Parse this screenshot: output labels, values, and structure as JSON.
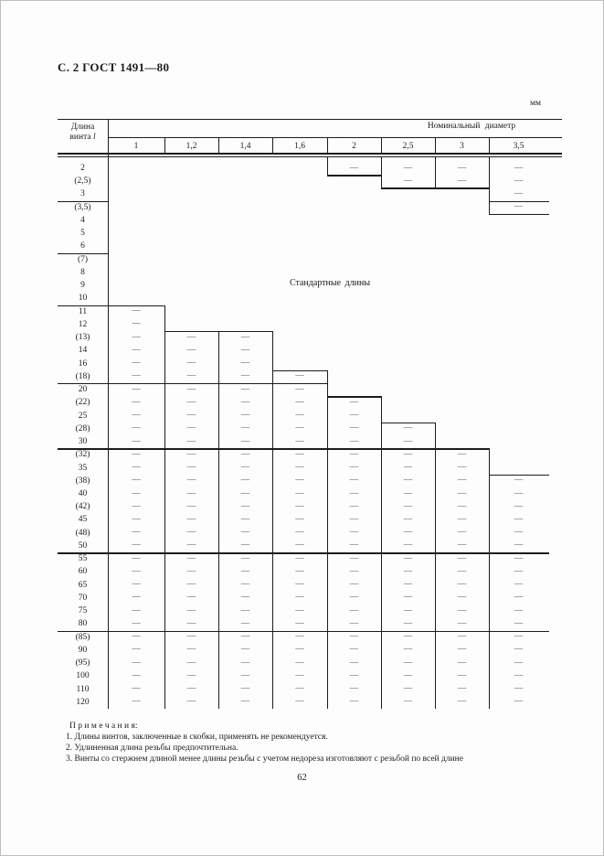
{
  "page": {
    "header": "С. 2 ГОСТ 1491—80",
    "unit_label": "мм",
    "page_number": "62"
  },
  "table": {
    "length_header_line1": "Длина",
    "length_header_line2": "винта",
    "length_header_symbol": "l",
    "diameter_header": "Номинальный диаметр",
    "columns": [
      "1",
      "1,2",
      "1,4",
      "1,6",
      "2",
      "2,5",
      "3",
      "3,5"
    ],
    "center_note": "Стандартные длины",
    "dash_symbol": "—",
    "rows": [
      {
        "len": "2",
        "d": [
          0,
          0,
          0,
          0,
          1,
          1,
          1,
          1
        ]
      },
      {
        "len": "(2,5)",
        "d": [
          0,
          0,
          0,
          0,
          0,
          1,
          1,
          1
        ]
      },
      {
        "len": "3",
        "d": [
          0,
          0,
          0,
          0,
          0,
          0,
          0,
          1
        ]
      },
      {
        "len": "(3,5)",
        "d": [
          0,
          0,
          0,
          0,
          0,
          0,
          0,
          1
        ]
      },
      {
        "len": "4",
        "d": [
          0,
          0,
          0,
          0,
          0,
          0,
          0,
          0
        ]
      },
      {
        "len": "5",
        "d": [
          0,
          0,
          0,
          0,
          0,
          0,
          0,
          0
        ]
      },
      {
        "len": "6",
        "d": [
          0,
          0,
          0,
          0,
          0,
          0,
          0,
          0
        ]
      },
      {
        "len": "(7)",
        "d": [
          0,
          0,
          0,
          0,
          0,
          0,
          0,
          0
        ]
      },
      {
        "len": "8",
        "d": [
          0,
          0,
          0,
          0,
          0,
          0,
          0,
          0
        ]
      },
      {
        "len": "9",
        "d": [
          0,
          0,
          0,
          0,
          0,
          0,
          0,
          0
        ]
      },
      {
        "len": "10",
        "d": [
          0,
          0,
          0,
          0,
          0,
          0,
          0,
          0
        ]
      },
      {
        "len": "11",
        "d": [
          1,
          0,
          0,
          0,
          0,
          0,
          0,
          0
        ]
      },
      {
        "len": "12",
        "d": [
          1,
          0,
          0,
          0,
          0,
          0,
          0,
          0
        ]
      },
      {
        "len": "(13)",
        "d": [
          1,
          1,
          1,
          0,
          0,
          0,
          0,
          0
        ]
      },
      {
        "len": "14",
        "d": [
          1,
          1,
          1,
          0,
          0,
          0,
          0,
          0
        ]
      },
      {
        "len": "16",
        "d": [
          1,
          1,
          1,
          0,
          0,
          0,
          0,
          0
        ]
      },
      {
        "len": "(18)",
        "d": [
          1,
          1,
          1,
          1,
          0,
          0,
          0,
          0
        ]
      },
      {
        "len": "20",
        "d": [
          1,
          1,
          1,
          1,
          0,
          0,
          0,
          0
        ]
      },
      {
        "len": "(22)",
        "d": [
          1,
          1,
          1,
          1,
          1,
          0,
          0,
          0
        ]
      },
      {
        "len": "25",
        "d": [
          1,
          1,
          1,
          1,
          1,
          0,
          0,
          0
        ]
      },
      {
        "len": "(28)",
        "d": [
          1,
          1,
          1,
          1,
          1,
          1,
          0,
          0
        ]
      },
      {
        "len": "30",
        "d": [
          1,
          1,
          1,
          1,
          1,
          1,
          0,
          0
        ]
      },
      {
        "len": "(32)",
        "d": [
          1,
          1,
          1,
          1,
          1,
          1,
          1,
          0
        ]
      },
      {
        "len": "35",
        "d": [
          1,
          1,
          1,
          1,
          1,
          1,
          1,
          0
        ]
      },
      {
        "len": "(38)",
        "d": [
          1,
          1,
          1,
          1,
          1,
          1,
          1,
          1
        ]
      },
      {
        "len": "40",
        "d": [
          1,
          1,
          1,
          1,
          1,
          1,
          1,
          1
        ]
      },
      {
        "len": "(42)",
        "d": [
          1,
          1,
          1,
          1,
          1,
          1,
          1,
          1
        ]
      },
      {
        "len": "45",
        "d": [
          1,
          1,
          1,
          1,
          1,
          1,
          1,
          1
        ]
      },
      {
        "len": "(48)",
        "d": [
          1,
          1,
          1,
          1,
          1,
          1,
          1,
          1
        ]
      },
      {
        "len": "50",
        "d": [
          1,
          1,
          1,
          1,
          1,
          1,
          1,
          1
        ]
      },
      {
        "len": "55",
        "d": [
          1,
          1,
          1,
          1,
          1,
          1,
          1,
          1
        ]
      },
      {
        "len": "60",
        "d": [
          1,
          1,
          1,
          1,
          1,
          1,
          1,
          1
        ]
      },
      {
        "len": "65",
        "d": [
          1,
          1,
          1,
          1,
          1,
          1,
          1,
          1
        ]
      },
      {
        "len": "70",
        "d": [
          1,
          1,
          1,
          1,
          1,
          1,
          1,
          1
        ]
      },
      {
        "len": "75",
        "d": [
          1,
          1,
          1,
          1,
          1,
          1,
          1,
          1
        ]
      },
      {
        "len": "80",
        "d": [
          1,
          1,
          1,
          1,
          1,
          1,
          1,
          1
        ]
      },
      {
        "len": "(85)",
        "d": [
          1,
          1,
          1,
          1,
          1,
          1,
          1,
          1
        ]
      },
      {
        "len": "90",
        "d": [
          1,
          1,
          1,
          1,
          1,
          1,
          1,
          1
        ]
      },
      {
        "len": "(95)",
        "d": [
          1,
          1,
          1,
          1,
          1,
          1,
          1,
          1
        ]
      },
      {
        "len": "100",
        "d": [
          1,
          1,
          1,
          1,
          1,
          1,
          1,
          1
        ]
      },
      {
        "len": "110",
        "d": [
          1,
          1,
          1,
          1,
          1,
          1,
          1,
          1
        ]
      },
      {
        "len": "120",
        "d": [
          1,
          1,
          1,
          1,
          1,
          1,
          1,
          1
        ]
      }
    ],
    "group_breaks_after": [
      "3",
      "6",
      "10",
      "(18)",
      "30",
      "50",
      "80"
    ]
  },
  "notes": {
    "title": "П р и м е ч а н и я:",
    "items": [
      "1. Длины винтов, заключенные в скобки, применять не рекомендуется.",
      "2. Удлиненная длина резьбы предпочтительна.",
      "3. Винты со стержнем длиной менее длины резьбы с учетом недореза изготовляют с резьбой по всей длине"
    ]
  }
}
